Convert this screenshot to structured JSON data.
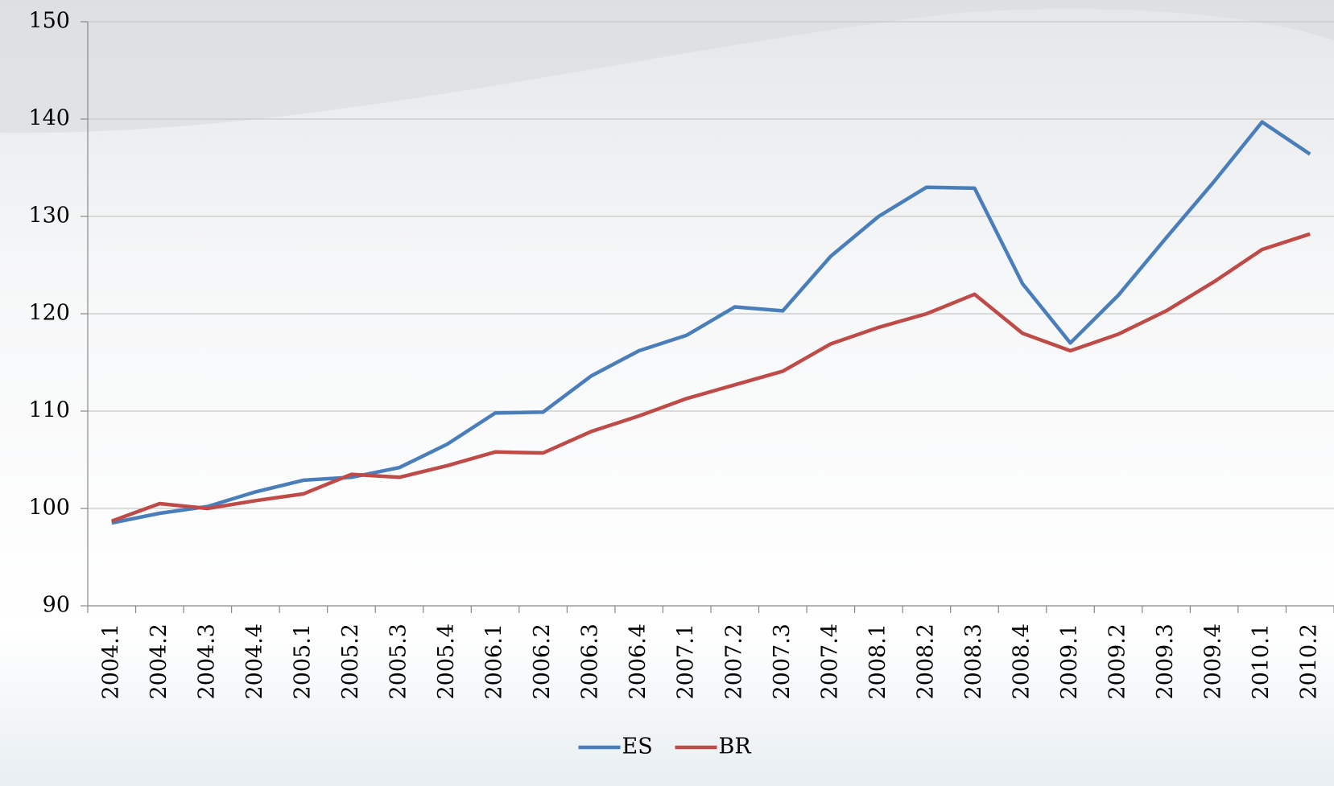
{
  "chart_data": {
    "type": "line",
    "categories": [
      "2004.1",
      "2004.2",
      "2004.3",
      "2004.4",
      "2005.1",
      "2005.2",
      "2005.3",
      "2005.4",
      "2006.1",
      "2006.2",
      "2006.3",
      "2006.4",
      "2007.1",
      "2007.2",
      "2007.3",
      "2007.4",
      "2008.1",
      "2008.2",
      "2008.3",
      "2008.4",
      "2009.1",
      "2009.2",
      "2009.3",
      "2009.4",
      "2010.1",
      "2010.2"
    ],
    "series": [
      {
        "name": "ES",
        "color": "#4a7ebb",
        "values": [
          98.5,
          99.5,
          100.2,
          101.7,
          102.9,
          103.2,
          104.2,
          106.6,
          109.8,
          109.9,
          113.6,
          116.2,
          117.8,
          120.7,
          120.3,
          125.9,
          130.0,
          133.0,
          132.9,
          123.1,
          117.0,
          121.9,
          127.8,
          133.6,
          139.7,
          136.4
        ]
      },
      {
        "name": "BR",
        "color": "#be4b48",
        "values": [
          98.7,
          100.5,
          100.0,
          100.8,
          101.5,
          103.5,
          103.2,
          104.4,
          105.8,
          105.7,
          107.9,
          109.5,
          111.3,
          112.7,
          114.1,
          116.9,
          118.6,
          120.0,
          122.0,
          118.0,
          116.2,
          117.9,
          120.3,
          123.3,
          126.6,
          128.2
        ]
      }
    ],
    "ylim": [
      90,
      150
    ],
    "yticks": [
      90,
      100,
      110,
      120,
      130,
      140,
      150
    ],
    "grid": true,
    "legend": "bottom"
  }
}
